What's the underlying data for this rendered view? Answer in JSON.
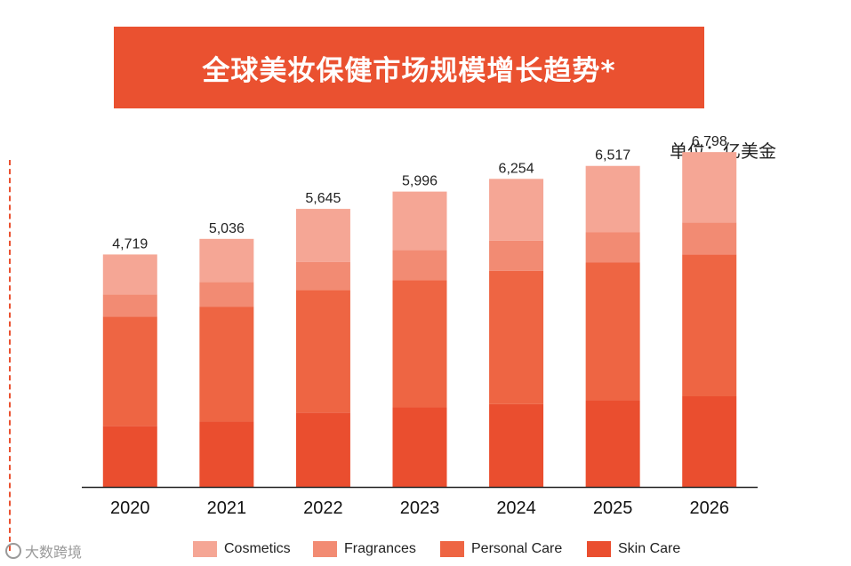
{
  "title": "全球美妆保健市场规模增长趋势*",
  "unit": "单位：亿美金",
  "watermark": "大数跨境",
  "chart_data": {
    "type": "bar",
    "stacked": true,
    "categories": [
      "2020",
      "2021",
      "2022",
      "2023",
      "2024",
      "2025",
      "2026"
    ],
    "totals": [
      4719,
      5036,
      5645,
      5996,
      6254,
      6517,
      6798
    ],
    "total_labels": [
      "4,719",
      "5,036",
      "5,645",
      "5,996",
      "6,254",
      "6,517",
      "6,798"
    ],
    "series": [
      {
        "name": "Skin Care",
        "color": "#ea4e2f",
        "values": [
          1240,
          1325,
          1510,
          1615,
          1680,
          1760,
          1840
        ]
      },
      {
        "name": "Personal Care",
        "color": "#ee6543",
        "values": [
          2220,
          2335,
          2490,
          2585,
          2705,
          2795,
          2880
        ]
      },
      {
        "name": "Fragrances",
        "color": "#f28b73",
        "values": [
          450,
          500,
          565,
          610,
          615,
          620,
          650
        ]
      },
      {
        "name": "Cosmetics",
        "color": "#f5a695",
        "values": [
          809,
          876,
          1080,
          1186,
          1254,
          1342,
          1428
        ]
      }
    ],
    "legend": [
      "Cosmetics",
      "Fragrances",
      "Personal Care",
      "Skin Care"
    ],
    "ylim": [
      0,
      7000
    ],
    "grid": false,
    "legend_position": "bottom"
  }
}
